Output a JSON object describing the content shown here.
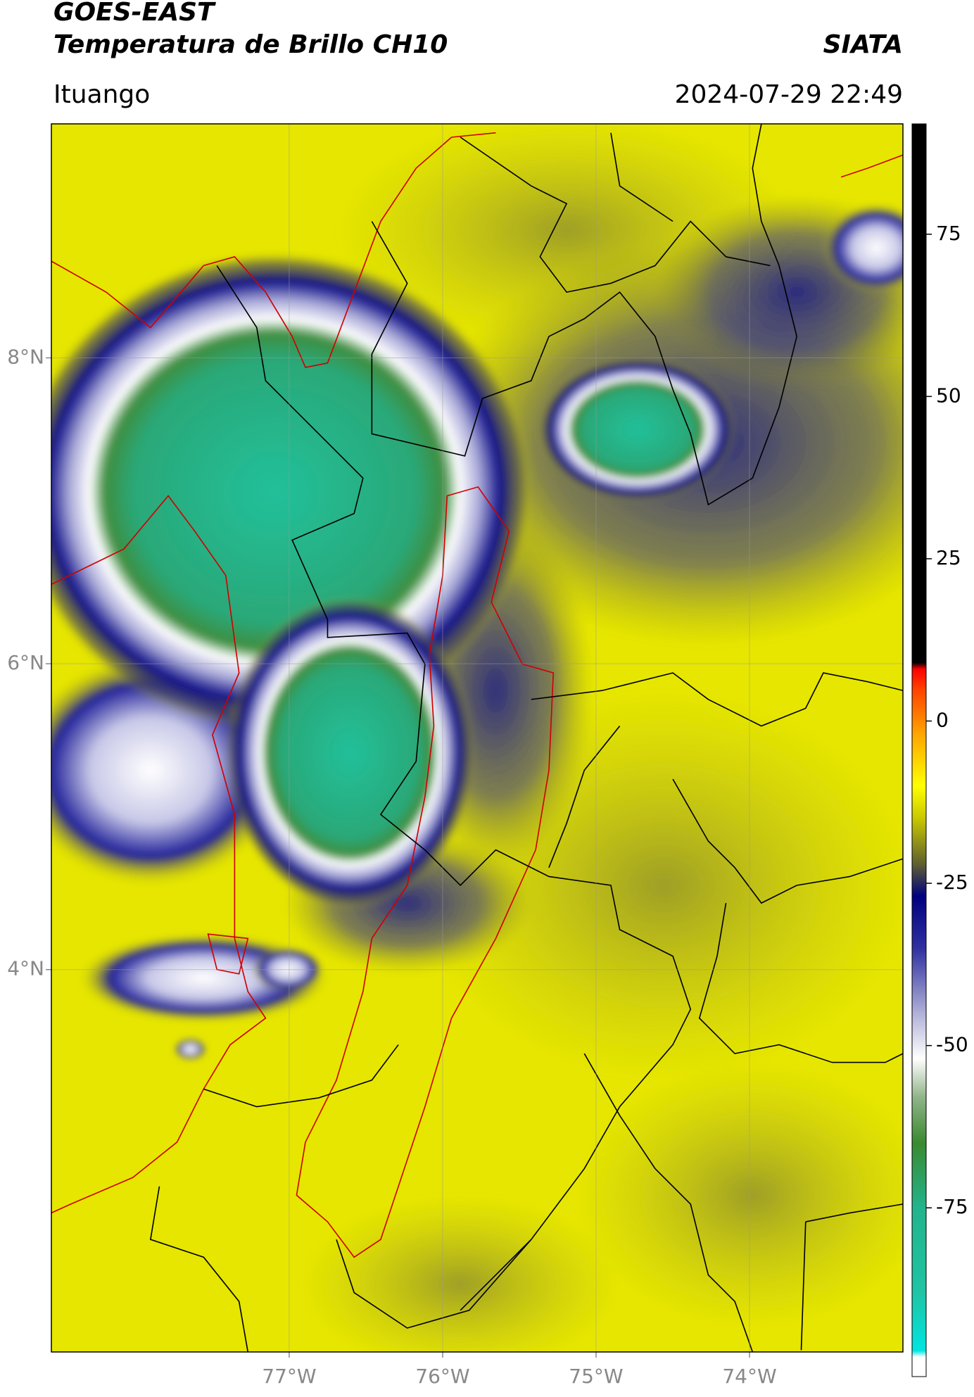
{
  "header": {
    "title": "GOES-EAST",
    "subtitle": "Temperatura de Brillo CH10",
    "agency": "SIATA",
    "location": "Ituango",
    "datetime": "2024-07-29 22:49"
  },
  "map": {
    "xlim": [
      -78.55,
      -73.0
    ],
    "ylim": [
      1.5,
      9.53
    ],
    "grid": true,
    "xticks": [
      {
        "value": -77,
        "label": "77°W"
      },
      {
        "value": -76,
        "label": "76°W"
      },
      {
        "value": -75,
        "label": "75°W"
      },
      {
        "value": -74,
        "label": "74°W"
      }
    ],
    "yticks": [
      {
        "value": 8,
        "label": "8°N"
      },
      {
        "value": 6,
        "label": "6°N"
      },
      {
        "value": 4,
        "label": "4°N"
      }
    ]
  },
  "colorbar": {
    "lim": [
      -101,
      92
    ],
    "ticks": [
      75,
      50,
      25,
      0,
      -25,
      -50,
      -75
    ],
    "colormap": [
      {
        "value": -101,
        "color": "#ffffff"
      },
      {
        "value": -98,
        "color": "#ffffff"
      },
      {
        "value": -97,
        "color": "#00e5e0"
      },
      {
        "value": -88,
        "color": "#20c4a4"
      },
      {
        "value": -75,
        "color": "#22b48c"
      },
      {
        "value": -65,
        "color": "#3a8a30"
      },
      {
        "value": -58,
        "color": "#90b488"
      },
      {
        "value": -52,
        "color": "#ffffff"
      },
      {
        "value": -45,
        "color": "#b0b0d8"
      },
      {
        "value": -35,
        "color": "#3030a0"
      },
      {
        "value": -27,
        "color": "#000080"
      },
      {
        "value": -22,
        "color": "#606030"
      },
      {
        "value": -15,
        "color": "#c8c800"
      },
      {
        "value": -10,
        "color": "#ffff00"
      },
      {
        "value": -2,
        "color": "#ffa500"
      },
      {
        "value": 5,
        "color": "#ff4000"
      },
      {
        "value": 8,
        "color": "#ff0000"
      },
      {
        "value": 9,
        "color": "#000000"
      },
      {
        "value": 92,
        "color": "#000000"
      }
    ]
  }
}
